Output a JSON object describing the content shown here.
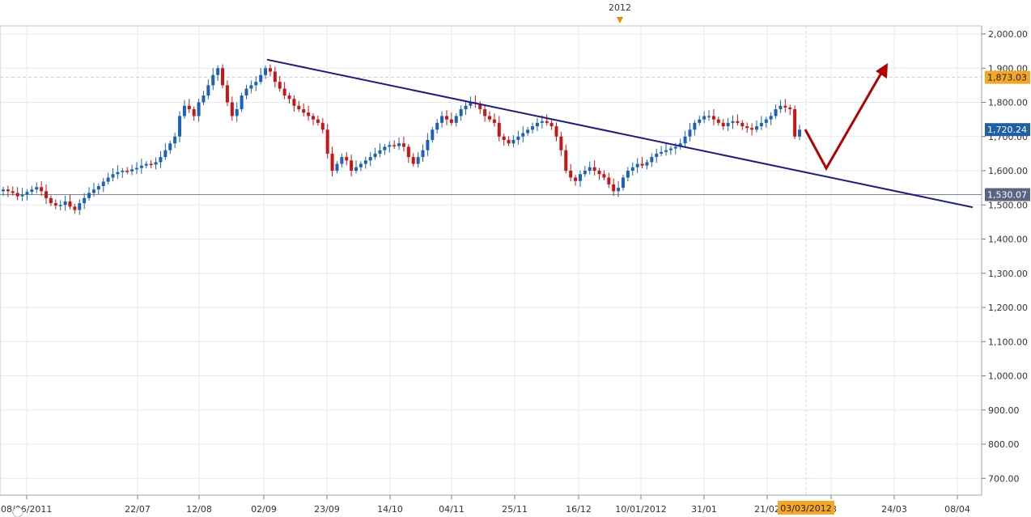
{
  "chart_data": {
    "type": "candlestick",
    "year_marker": "2012",
    "x_tick_labels": [
      "08/06/2011",
      "22/07",
      "12/08",
      "02/09",
      "23/09",
      "14/10",
      "04/11",
      "25/11",
      "16/12",
      "10/01/2012",
      "31/01",
      "21/02",
      "03",
      "24/03",
      "08/04"
    ],
    "y_tick_labels": [
      "2,000.00",
      "1,900.00",
      "1,800.00",
      "1,700.00",
      "1,600.00",
      "1,500.00",
      "1,400.00",
      "1,300.00",
      "1,200.00",
      "1,100.00",
      "1,000.00",
      "900.00",
      "800.00",
      "700.00"
    ],
    "ylim": [
      650,
      2030
    ],
    "price_tags": [
      {
        "value": 1873.03,
        "label": "1,873.03",
        "color": "#f5a623"
      },
      {
        "value": 1720.24,
        "label": "1,720.24",
        "color": "#1f5fa8"
      },
      {
        "value": 1530.07,
        "label": "1,530.07",
        "color": "#5b6382"
      }
    ],
    "cursor_date_label": "03/03/2012",
    "reference_lines": [
      {
        "value": 1873.03,
        "style": "dashed"
      },
      {
        "value": 1530.07,
        "style": "solid"
      }
    ],
    "trendline": {
      "start": {
        "idx": 0,
        "value": 1925
      },
      "end": {
        "idx": 1,
        "value": 1493
      }
    },
    "close_series": [
      1545,
      1540,
      1535,
      1525,
      1530,
      1538,
      1545,
      1552,
      1540,
      1520,
      1505,
      1498,
      1500,
      1510,
      1495,
      1485,
      1505,
      1520,
      1535,
      1545,
      1555,
      1568,
      1580,
      1590,
      1596,
      1600,
      1598,
      1604,
      1608,
      1615,
      1620,
      1618,
      1625,
      1640,
      1660,
      1680,
      1700,
      1760,
      1790,
      1780,
      1760,
      1800,
      1820,
      1850,
      1880,
      1900,
      1850,
      1800,
      1760,
      1780,
      1820,
      1840,
      1850,
      1860,
      1880,
      1900,
      1890,
      1860,
      1840,
      1820,
      1810,
      1790,
      1780,
      1770,
      1760,
      1750,
      1740,
      1720,
      1650,
      1600,
      1620,
      1640,
      1630,
      1600,
      1610,
      1620,
      1630,
      1640,
      1650,
      1660,
      1670,
      1675,
      1672,
      1680,
      1670,
      1640,
      1620,
      1640,
      1660,
      1690,
      1720,
      1740,
      1760,
      1750,
      1740,
      1760,
      1780,
      1790,
      1800,
      1795,
      1780,
      1760,
      1750,
      1740,
      1700,
      1690,
      1680,
      1690,
      1700,
      1710,
      1720,
      1730,
      1740,
      1745,
      1740,
      1730,
      1700,
      1660,
      1600,
      1580,
      1570,
      1590,
      1600,
      1610,
      1600,
      1590,
      1580,
      1560,
      1540,
      1550,
      1580,
      1600,
      1610,
      1620,
      1615,
      1625,
      1640,
      1650,
      1655,
      1660,
      1665,
      1670,
      1680,
      1700,
      1720,
      1740,
      1750,
      1760,
      1760,
      1750,
      1740,
      1730,
      1740,
      1745,
      1740,
      1730,
      1725,
      1720,
      1730,
      1740,
      1750,
      1760,
      1780,
      1790,
      1785,
      1780,
      1700,
      1720
    ]
  },
  "annotation_arrow": {
    "color": "#b30000"
  }
}
